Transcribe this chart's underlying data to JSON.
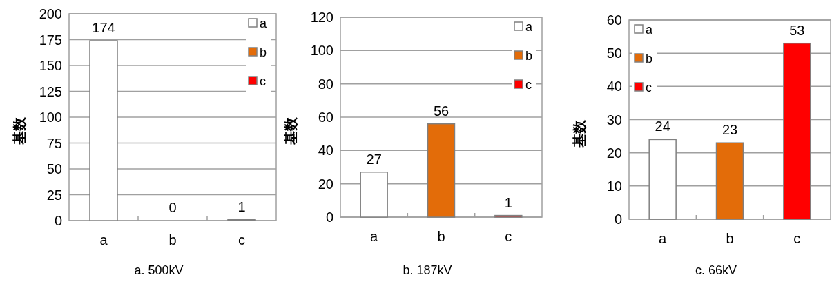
{
  "chart_data": [
    {
      "type": "bar",
      "categories": [
        "a",
        "b",
        "c"
      ],
      "xlabel": "a. 500kV",
      "ylabel": "基数",
      "ylim": [
        0,
        200
      ],
      "yticks": [
        0,
        25,
        50,
        75,
        100,
        125,
        150,
        175,
        200
      ],
      "grid": "y",
      "legend": "top right",
      "data_labels": true,
      "series": [
        {
          "name": "a",
          "color": "#ffffff",
          "values": [
            174,
            null,
            null
          ]
        },
        {
          "name": "b",
          "color": "#e36c09",
          "values": [
            null,
            0,
            null
          ]
        },
        {
          "name": "c",
          "color": "#ff0000",
          "values": [
            null,
            null,
            1
          ]
        }
      ]
    },
    {
      "type": "bar",
      "categories": [
        "a",
        "b",
        "c"
      ],
      "xlabel": "b. 187kV",
      "ylabel": "基数",
      "ylim": [
        0,
        120
      ],
      "yticks": [
        0,
        20,
        40,
        60,
        80,
        100,
        120
      ],
      "grid": "y",
      "legend": "top right",
      "data_labels": true,
      "series": [
        {
          "name": "a",
          "color": "#ffffff",
          "values": [
            27,
            null,
            null
          ]
        },
        {
          "name": "b",
          "color": "#e36c09",
          "values": [
            null,
            56,
            null
          ]
        },
        {
          "name": "c",
          "color": "#ff0000",
          "values": [
            null,
            null,
            1
          ]
        }
      ]
    },
    {
      "type": "bar",
      "categories": [
        "a",
        "b",
        "c"
      ],
      "xlabel": "c. 66kV",
      "ylabel": "基数",
      "ylim": [
        0,
        60
      ],
      "yticks": [
        0,
        10,
        20,
        30,
        40,
        50,
        60
      ],
      "grid": "y",
      "legend": "top left",
      "data_labels": true,
      "series": [
        {
          "name": "a",
          "color": "#ffffff",
          "values": [
            24,
            null,
            null
          ]
        },
        {
          "name": "b",
          "color": "#e36c09",
          "values": [
            null,
            23,
            null
          ]
        },
        {
          "name": "c",
          "color": "#ff0000",
          "values": [
            null,
            null,
            53
          ]
        }
      ]
    }
  ]
}
